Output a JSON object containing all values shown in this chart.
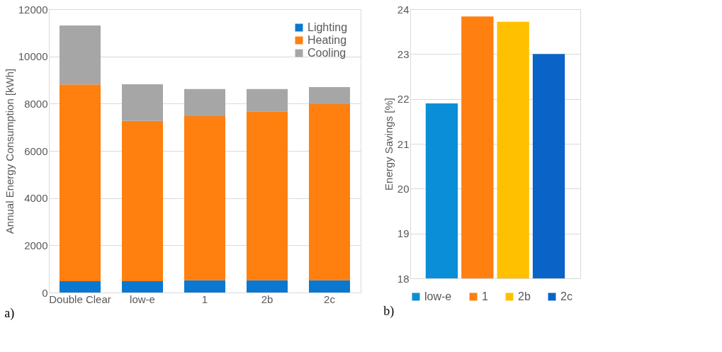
{
  "chart_data": [
    {
      "type": "bar",
      "stacked": true,
      "categories": [
        "Double Clear",
        "low-e",
        "1",
        "2b",
        "2c"
      ],
      "ylabel": "Annual Energy Consumption [kWh]",
      "ylim": [
        0,
        12000
      ],
      "yticks": [
        0,
        2000,
        4000,
        6000,
        8000,
        10000,
        12000
      ],
      "grid": "y",
      "legend": "top right",
      "annotations": [
        "a)"
      ],
      "series": [
        {
          "name": "Lighting",
          "color": "#0a78d0",
          "values": [
            480,
            480,
            520,
            520,
            520
          ]
        },
        {
          "name": "Heating",
          "color": "#ff7f0f",
          "values": [
            8330,
            6790,
            6950,
            7150,
            7460
          ]
        },
        {
          "name": "Cooling",
          "color": "#a6a6a6",
          "values": [
            2500,
            1550,
            1150,
            950,
            720
          ]
        }
      ]
    },
    {
      "type": "bar",
      "categories": [
        null
      ],
      "ylabel": "Energy Savings [%]",
      "ylim": [
        18,
        24
      ],
      "yticks": [
        18,
        19,
        20,
        21,
        22,
        23,
        24
      ],
      "grid": "y",
      "legend": "bottom",
      "tick_labels": "y",
      "annotations": [
        "b)"
      ],
      "series": [
        {
          "name": "low-e",
          "color": "#0a8ed8",
          "values": [
            21.9
          ]
        },
        {
          "name": "1",
          "color": "#ff7f10",
          "values": [
            23.84
          ]
        },
        {
          "name": "2b",
          "color": "#ffc000",
          "values": [
            23.72
          ]
        },
        {
          "name": "2c",
          "color": "#0a64c8",
          "values": [
            23.0
          ]
        }
      ]
    }
  ]
}
